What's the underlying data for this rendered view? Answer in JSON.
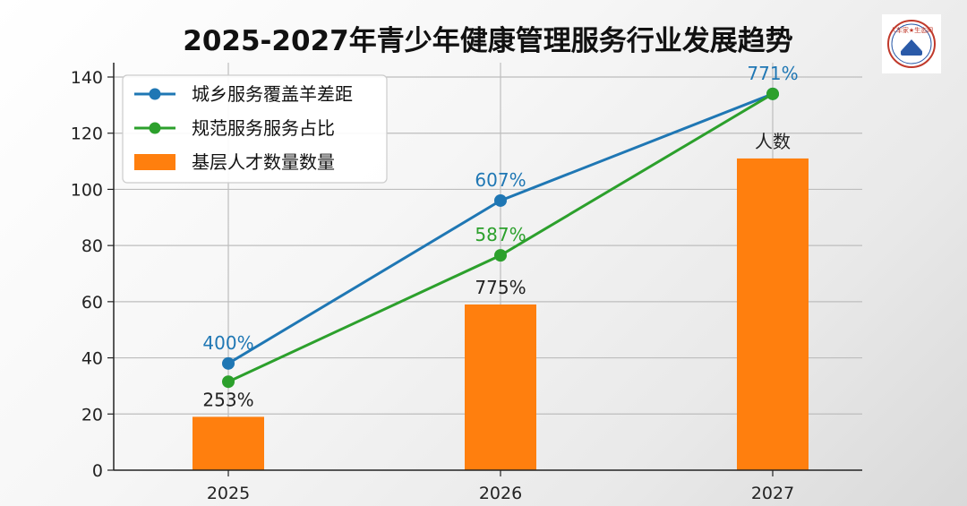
{
  "chart_data": {
    "type": "bar+line",
    "title": "2025-2027年青少年健康管理服务行业发展趋势",
    "categories": [
      "2025",
      "2026",
      "2027"
    ],
    "ylim": [
      0,
      140
    ],
    "yticks": [
      0,
      20,
      40,
      60,
      80,
      100,
      120,
      140
    ],
    "grid": true,
    "legend_position": "top-left",
    "bars": {
      "name": "基层人才数量数量",
      "color": "#ff7f0e",
      "values": [
        19,
        59,
        111
      ],
      "labels": [
        "253%",
        "775%",
        "人数"
      ]
    },
    "series": [
      {
        "name": "城乡服务覆盖羊差距",
        "color": "#1f77b4",
        "values": [
          38,
          96,
          134
        ],
        "labels": [
          "400%",
          "607%",
          "771%"
        ]
      },
      {
        "name": "规范服务服务占比",
        "color": "#2ca02c",
        "values": [
          31.5,
          76.5,
          134
        ],
        "labels": [
          "",
          "587%",
          ""
        ]
      }
    ]
  },
  "logo": {
    "text": "人车家★生态网"
  }
}
